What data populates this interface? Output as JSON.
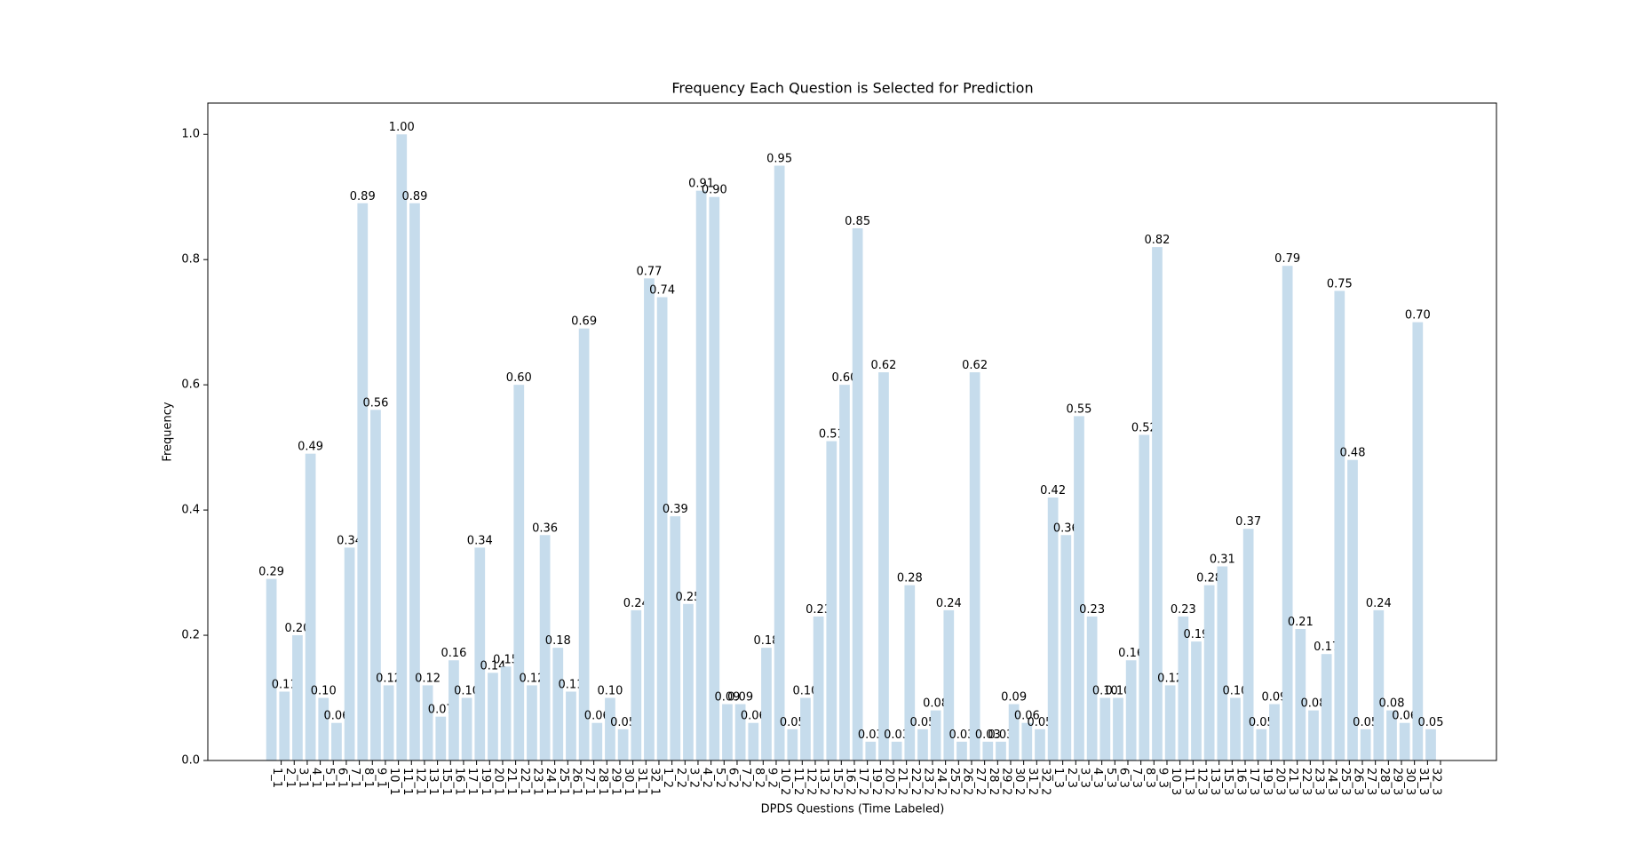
{
  "chart_data": {
    "type": "bar",
    "title": "Frequency Each Question is Selected for Prediction",
    "xlabel": "DPDS Questions (Time Labeled)",
    "ylabel": "Frequency",
    "categories": [
      "1_1",
      "2_1",
      "3_1",
      "4_1",
      "5_1",
      "6_1",
      "7_1",
      "8_1",
      "9_1",
      "10_1",
      "11_1",
      "12_1",
      "13_1",
      "15_1",
      "16_1",
      "17_1",
      "19_1",
      "20_1",
      "21_1",
      "22_1",
      "23_1",
      "24_1",
      "25_1",
      "26_1",
      "27_1",
      "28_1",
      "29_1",
      "30_1",
      "31_1",
      "32_1",
      "1_2",
      "2_2",
      "3_2",
      "4_2",
      "5_2",
      "6_2",
      "7_2",
      "8_2",
      "9_2",
      "10_2",
      "11_2",
      "12_2",
      "13_2",
      "15_2",
      "16_2",
      "17_2",
      "19_2",
      "20_2",
      "21_2",
      "22_2",
      "23_2",
      "24_2",
      "25_2",
      "26_2",
      "27_2",
      "28_2",
      "29_2",
      "30_2",
      "31_2",
      "32_2",
      "1_3",
      "2_3",
      "3_3",
      "4_3",
      "5_3",
      "6_3",
      "7_3",
      "8_3",
      "9_3",
      "10_3",
      "11_3",
      "12_3",
      "13_3",
      "15_3",
      "16_3",
      "17_3",
      "19_3",
      "20_3",
      "21_3",
      "22_3",
      "23_3",
      "24_3",
      "25_3",
      "26_3",
      "27_3",
      "28_3",
      "29_3",
      "30_3",
      "31_3",
      "32_3"
    ],
    "values": [
      0.29,
      0.11,
      0.2,
      0.49,
      0.1,
      0.06,
      0.34,
      0.89,
      0.56,
      0.12,
      1,
      0.89,
      0.12,
      0.07,
      0.16,
      0.1,
      0.34,
      0.14,
      0.15,
      0.6,
      0.12,
      0.36,
      0.18,
      0.11,
      0.69,
      0.06,
      0.1,
      0.05,
      0.24,
      0.77,
      0.74,
      0.39,
      0.25,
      0.91,
      0.9,
      0.09,
      0.09,
      0.06,
      0.18,
      0.95,
      0.05,
      0.1,
      0.23,
      0.51,
      0.6,
      0.85,
      0.03,
      0.62,
      0.03,
      0.28,
      0.05,
      0.08,
      0.24,
      0.03,
      0.62,
      0.03,
      0.03,
      0.09,
      0.06,
      0.05,
      0.42,
      0.36,
      0.55,
      0.23,
      0.1,
      0.1,
      0.16,
      0.52,
      0.82,
      0.12,
      0.23,
      0.19,
      0.28,
      0.31,
      0.1,
      0.37,
      0.05,
      0.09,
      0.79,
      0.21,
      0.08,
      0.17,
      0.75,
      0.48,
      0.05,
      0.24,
      0.08,
      0.06,
      0.7,
      0.05
    ],
    "value_labels": [
      "0.29",
      "0.11",
      "0.20",
      "0.49",
      "0.10",
      "0.06",
      "0.34",
      "0.89",
      "0.56",
      "0.12",
      "1.00",
      "0.89",
      "0.12",
      "0.07",
      "0.16",
      "0.10",
      "0.34",
      "0.14",
      "0.15",
      "0.60",
      "0.12",
      "0.36",
      "0.18",
      "0.11",
      "0.69",
      "0.06",
      "0.10",
      "0.05",
      "0.24",
      "0.77",
      "0.74",
      "0.39",
      "0.25",
      "0.91",
      "0.90",
      "0.09",
      "0.09",
      "0.06",
      "0.18",
      "0.95",
      "0.05",
      "0.10",
      "0.23",
      "0.51",
      "0.60",
      "0.85",
      "0.03",
      "0.62",
      "0.03",
      "0.28",
      "0.05",
      "0.08",
      "0.24",
      "0.03",
      "0.62",
      "0.03",
      "0.03",
      "0.09",
      "0.06",
      "0.05",
      "0.42",
      "0.36",
      "0.55",
      "0.23",
      "0.10",
      "0.10",
      "0.16",
      "0.52",
      "0.82",
      "0.12",
      "0.23",
      "0.19",
      "0.28",
      "0.31",
      "0.10",
      "0.37",
      "0.05",
      "0.09",
      "0.79",
      "0.21",
      "0.08",
      "0.17",
      "0.75",
      "0.48",
      "0.05",
      "0.24",
      "0.08",
      "0.06",
      "0.70",
      "0.05"
    ],
    "color": "#c6dcec",
    "ylim": [
      0,
      1.05
    ],
    "yticks": [
      {
        "value": 0,
        "label": "0.0"
      },
      0.2,
      0.4,
      0.6,
      0.8,
      {
        "value": 1,
        "label": "1.0"
      }
    ]
  }
}
